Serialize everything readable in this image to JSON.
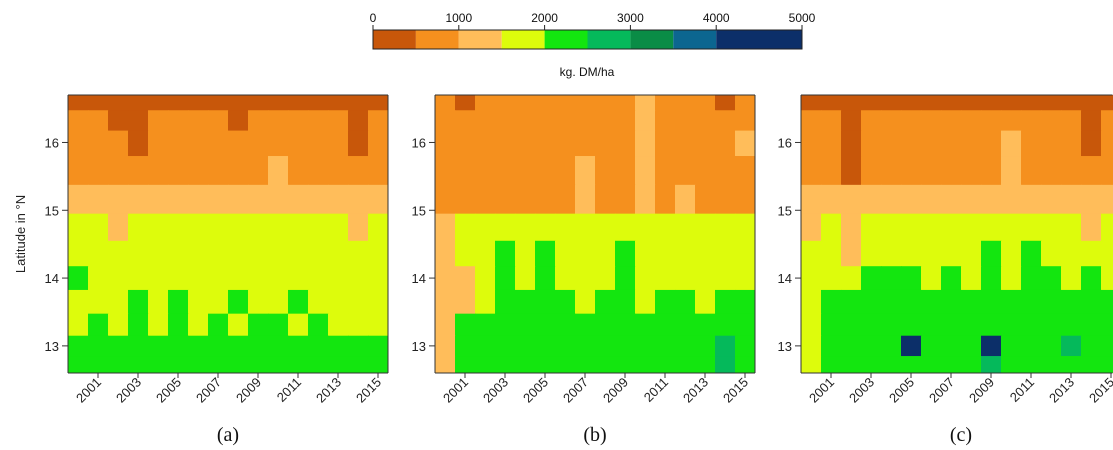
{
  "colorbar": {
    "ticks": [
      0,
      1000,
      2000,
      3000,
      4000,
      5000
    ],
    "tick_labels": [
      "0",
      "1000",
      "2000",
      "3000",
      "4000",
      "5000"
    ],
    "label": "kg. DM/ha",
    "bins": [
      0,
      500,
      1000,
      1500,
      2000,
      2500,
      3000,
      3500,
      4000,
      4500,
      5000
    ],
    "colors": [
      "#c8570a",
      "#f5901e",
      "#ffbd5a",
      "#ddfc0c",
      "#13e60f",
      "#05b95b",
      "#0a8c46",
      "#0c6690",
      "#0c2f69"
    ]
  },
  "chart_data": [
    {
      "type": "heatmap",
      "panel_label": "(a)",
      "ylabel": "Latitude in °N",
      "x_tick_labels": [
        "2001",
        "2003",
        "2005",
        "2007",
        "2009",
        "2011",
        "2013",
        "2015"
      ],
      "y_tick_labels": [
        "13",
        "14",
        "15",
        "16"
      ],
      "years": [
        2000,
        2001,
        2002,
        2003,
        2004,
        2005,
        2006,
        2007,
        2008,
        2009,
        2010,
        2011,
        2012,
        2013,
        2014,
        2015
      ],
      "ylim": [
        12.6,
        16.7
      ],
      "lat_bands": [
        16.6,
        16.35,
        16.0,
        15.6,
        15.15,
        14.75,
        14.35,
        14.0,
        13.65,
        13.3,
        13.0,
        12.7
      ],
      "values": [
        [
          200,
          300,
          250,
          200,
          250,
          200,
          250,
          300,
          200,
          250,
          250,
          300,
          200,
          250,
          150,
          200
        ],
        [
          500,
          600,
          400,
          300,
          700,
          700,
          600,
          700,
          400,
          700,
          700,
          700,
          700,
          600,
          400,
          700
        ],
        [
          700,
          700,
          600,
          400,
          700,
          700,
          700,
          700,
          700,
          700,
          700,
          700,
          700,
          700,
          400,
          700
        ],
        [
          800,
          800,
          800,
          800,
          800,
          800,
          900,
          900,
          800,
          800,
          1100,
          900,
          800,
          800,
          900,
          900
        ],
        [
          1200,
          1300,
          1100,
          1100,
          1200,
          1100,
          1300,
          1200,
          1100,
          1200,
          1200,
          1100,
          1200,
          1100,
          1200,
          1200
        ],
        [
          1600,
          1700,
          1400,
          1600,
          1600,
          1600,
          1700,
          1600,
          1700,
          1600,
          1600,
          1700,
          1600,
          1700,
          1400,
          1600
        ],
        [
          1700,
          1800,
          1700,
          1800,
          1800,
          1700,
          1800,
          1700,
          1800,
          1800,
          1700,
          1800,
          1700,
          1800,
          1700,
          1800
        ],
        [
          2100,
          1800,
          1700,
          1900,
          1800,
          1900,
          1800,
          1800,
          1800,
          1900,
          1800,
          1900,
          1800,
          1900,
          1800,
          1800
        ],
        [
          1800,
          1900,
          1800,
          2100,
          1900,
          2000,
          1900,
          1900,
          2100,
          1900,
          1900,
          2100,
          1900,
          1900,
          1800,
          1900
        ],
        [
          1900,
          2100,
          1900,
          2000,
          1900,
          2100,
          1900,
          2200,
          1900,
          2100,
          2000,
          1900,
          2100,
          1900,
          1900,
          1900
        ],
        [
          2200,
          2100,
          2300,
          2100,
          2200,
          2300,
          2100,
          2200,
          2400,
          2200,
          2100,
          2200,
          2300,
          2100,
          2200,
          2100
        ],
        [
          2300,
          2200,
          2100,
          2300,
          2200,
          2400,
          2200,
          2300,
          2200,
          2100,
          2300,
          2200,
          2100,
          2300,
          2200,
          2400
        ]
      ]
    },
    {
      "type": "heatmap",
      "panel_label": "(b)",
      "x_tick_labels": [
        "2001",
        "2003",
        "2005",
        "2007",
        "2009",
        "2011",
        "2013",
        "2015"
      ],
      "y_tick_labels": [
        "13",
        "14",
        "15",
        "16"
      ],
      "years": [
        2000,
        2001,
        2002,
        2003,
        2004,
        2005,
        2006,
        2007,
        2008,
        2009,
        2010,
        2011,
        2012,
        2013,
        2014,
        2015
      ],
      "ylim": [
        12.6,
        16.7
      ],
      "lat_bands": [
        16.6,
        16.35,
        16.0,
        15.6,
        15.15,
        14.75,
        14.35,
        14.0,
        13.65,
        13.3,
        13.0,
        12.7
      ],
      "values": [
        [
          700,
          400,
          700,
          700,
          700,
          700,
          700,
          700,
          700,
          700,
          1100,
          700,
          700,
          700,
          400,
          700
        ],
        [
          700,
          700,
          700,
          700,
          700,
          700,
          700,
          700,
          700,
          700,
          1100,
          700,
          700,
          700,
          700,
          700
        ],
        [
          700,
          700,
          700,
          700,
          700,
          700,
          700,
          700,
          700,
          700,
          1100,
          700,
          700,
          700,
          700,
          1100
        ],
        [
          700,
          700,
          700,
          700,
          700,
          700,
          700,
          1100,
          700,
          700,
          1100,
          700,
          700,
          700,
          700,
          700
        ],
        [
          800,
          800,
          800,
          800,
          800,
          800,
          800,
          1100,
          800,
          800,
          1100,
          800,
          1100,
          800,
          800,
          800
        ],
        [
          1200,
          1600,
          1600,
          1700,
          1700,
          1700,
          1700,
          1700,
          1700,
          1700,
          1600,
          1700,
          1700,
          1700,
          1600,
          1700
        ],
        [
          1200,
          1800,
          1700,
          2200,
          1800,
          2200,
          1800,
          1800,
          1800,
          2200,
          1800,
          1800,
          1800,
          1800,
          1800,
          1800
        ],
        [
          1300,
          1200,
          1700,
          2300,
          1800,
          2300,
          1800,
          1800,
          1800,
          2300,
          1800,
          1800,
          1800,
          1800,
          1800,
          1800
        ],
        [
          1200,
          1200,
          1700,
          2300,
          2200,
          2300,
          2200,
          1800,
          2300,
          2300,
          1800,
          2200,
          2200,
          1800,
          2200,
          2200
        ],
        [
          1200,
          2300,
          2300,
          2400,
          2300,
          2300,
          2300,
          2300,
          2400,
          2300,
          2300,
          2300,
          2300,
          2300,
          2300,
          2200
        ],
        [
          1200,
          2300,
          2400,
          2400,
          2300,
          2400,
          2400,
          2300,
          2400,
          2400,
          2300,
          2400,
          2300,
          2400,
          2600,
          2300
        ],
        [
          1000,
          2400,
          2300,
          2400,
          2400,
          2300,
          2400,
          2400,
          2300,
          2400,
          2400,
          2300,
          2400,
          2400,
          2700,
          2400
        ]
      ]
    },
    {
      "type": "heatmap",
      "panel_label": "(c)",
      "x_tick_labels": [
        "2001",
        "2003",
        "2005",
        "2007",
        "2009",
        "2011",
        "2013",
        "2015"
      ],
      "y_tick_labels": [
        "13",
        "14",
        "15",
        "16"
      ],
      "years": [
        2000,
        2001,
        2002,
        2003,
        2004,
        2005,
        2006,
        2007,
        2008,
        2009,
        2010,
        2011,
        2012,
        2013,
        2014,
        2015
      ],
      "ylim": [
        12.6,
        16.7
      ],
      "lat_bands": [
        16.6,
        16.35,
        16.0,
        15.6,
        15.15,
        14.75,
        14.35,
        14.0,
        13.65,
        13.3,
        13.0,
        12.7
      ],
      "values": [
        [
          200,
          300,
          250,
          300,
          250,
          200,
          250,
          300,
          200,
          250,
          250,
          300,
          200,
          250,
          200,
          250
        ],
        [
          500,
          700,
          400,
          700,
          600,
          600,
          700,
          700,
          700,
          700,
          700,
          700,
          700,
          700,
          400,
          700
        ],
        [
          700,
          700,
          400,
          700,
          700,
          700,
          700,
          700,
          700,
          700,
          1100,
          700,
          700,
          700,
          400,
          700
        ],
        [
          800,
          800,
          400,
          800,
          800,
          800,
          800,
          900,
          800,
          800,
          1100,
          800,
          800,
          800,
          800,
          800
        ],
        [
          1100,
          1200,
          1100,
          1100,
          1200,
          1100,
          1200,
          1100,
          1100,
          1100,
          1200,
          1100,
          1200,
          1100,
          1100,
          1100
        ],
        [
          1300,
          1700,
          1400,
          1700,
          1600,
          1600,
          1700,
          1600,
          1700,
          1600,
          1600,
          1700,
          1600,
          1700,
          1400,
          1600
        ],
        [
          1700,
          1800,
          1300,
          1800,
          1800,
          1800,
          1800,
          1800,
          1800,
          2100,
          1800,
          2100,
          1800,
          1800,
          1800,
          1800
        ],
        [
          1800,
          1800,
          1800,
          2100,
          2100,
          2200,
          1800,
          2100,
          1800,
          2200,
          1800,
          2200,
          2100,
          1800,
          2200,
          1800
        ],
        [
          1800,
          2100,
          2100,
          2200,
          2200,
          2100,
          2100,
          2100,
          2200,
          2200,
          2100,
          2200,
          2100,
          2100,
          2200,
          2100
        ],
        [
          1800,
          2100,
          2200,
          2300,
          2200,
          2300,
          2200,
          2200,
          2300,
          2200,
          2100,
          2300,
          2200,
          2200,
          2300,
          2200
        ],
        [
          1800,
          2300,
          2300,
          2400,
          2300,
          4200,
          2300,
          2300,
          2400,
          4300,
          2300,
          2400,
          2300,
          2600,
          2300,
          2300
        ],
        [
          1700,
          2300,
          2400,
          2300,
          2400,
          2300,
          2400,
          2300,
          2400,
          2600,
          2400,
          2300,
          2400,
          2300,
          2400,
          2300
        ]
      ]
    }
  ]
}
